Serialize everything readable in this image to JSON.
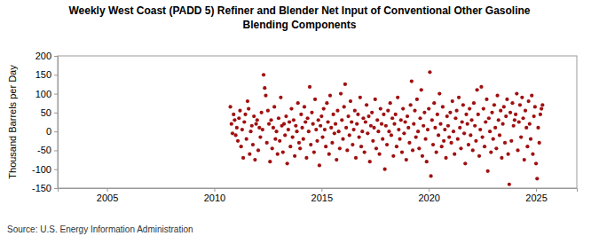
{
  "chart_data": {
    "type": "scatter",
    "title": [
      "Weekly West Coast (PADD 5) Refiner and Blender Net Input of Conventional Other Gasoline",
      "Blending Components"
    ],
    "y_label": "Thousand Barrels per Day",
    "source": "Source: U.S. Energy Information Administration",
    "color": "#a01010",
    "marker": "circle",
    "grid": false,
    "xlim": [
      2002.7,
      2026.9
    ],
    "xticks": [
      2005,
      2010,
      2015,
      2020,
      2025
    ],
    "ylim": [
      -150,
      200
    ],
    "yticks": [
      -150,
      -100,
      -50,
      0,
      50,
      100,
      150,
      200
    ],
    "x": [
      2010.75,
      2010.8,
      2010.85,
      2010.9,
      2010.95,
      2011.0,
      2011.05,
      2011.1,
      2011.15,
      2011.2,
      2011.25,
      2011.3,
      2011.35,
      2011.4,
      2011.45,
      2011.5,
      2011.55,
      2011.6,
      2011.65,
      2011.7,
      2011.75,
      2011.8,
      2011.85,
      2011.9,
      2011.95,
      2012.0,
      2012.05,
      2012.1,
      2012.15,
      2012.2,
      2012.25,
      2012.3,
      2012.35,
      2012.4,
      2012.45,
      2012.5,
      2012.55,
      2012.6,
      2012.65,
      2012.7,
      2012.75,
      2012.8,
      2012.85,
      2012.9,
      2012.95,
      2013.0,
      2013.05,
      2013.1,
      2013.15,
      2013.2,
      2013.25,
      2013.3,
      2013.35,
      2013.4,
      2013.45,
      2013.5,
      2013.55,
      2013.6,
      2013.65,
      2013.7,
      2013.75,
      2013.8,
      2013.85,
      2013.9,
      2013.95,
      2014.0,
      2014.05,
      2014.1,
      2014.15,
      2014.2,
      2014.25,
      2014.3,
      2014.35,
      2014.4,
      2014.45,
      2014.5,
      2014.55,
      2014.6,
      2014.65,
      2014.7,
      2014.75,
      2014.8,
      2014.85,
      2014.9,
      2014.95,
      2015.0,
      2015.05,
      2015.1,
      2015.15,
      2015.2,
      2015.25,
      2015.3,
      2015.35,
      2015.4,
      2015.45,
      2015.5,
      2015.55,
      2015.6,
      2015.65,
      2015.7,
      2015.75,
      2015.8,
      2015.85,
      2015.9,
      2015.95,
      2016.0,
      2016.05,
      2016.1,
      2016.15,
      2016.2,
      2016.25,
      2016.3,
      2016.35,
      2016.4,
      2016.45,
      2016.5,
      2016.55,
      2016.6,
      2016.65,
      2016.7,
      2016.75,
      2016.8,
      2016.85,
      2016.9,
      2016.95,
      2017.0,
      2017.05,
      2017.1,
      2017.15,
      2017.2,
      2017.25,
      2017.3,
      2017.35,
      2017.4,
      2017.45,
      2017.5,
      2017.55,
      2017.6,
      2017.65,
      2017.7,
      2017.75,
      2017.8,
      2017.85,
      2017.9,
      2017.95,
      2018.0,
      2018.05,
      2018.1,
      2018.15,
      2018.2,
      2018.25,
      2018.3,
      2018.35,
      2018.4,
      2018.45,
      2018.5,
      2018.55,
      2018.6,
      2018.65,
      2018.7,
      2018.75,
      2018.8,
      2018.85,
      2018.9,
      2018.95,
      2019.0,
      2019.05,
      2019.1,
      2019.15,
      2019.2,
      2019.25,
      2019.3,
      2019.35,
      2019.4,
      2019.45,
      2019.5,
      2019.55,
      2019.6,
      2019.65,
      2019.7,
      2019.75,
      2019.8,
      2019.85,
      2019.9,
      2019.95,
      2020.0,
      2020.05,
      2020.1,
      2020.15,
      2020.2,
      2020.25,
      2020.3,
      2020.35,
      2020.4,
      2020.45,
      2020.5,
      2020.55,
      2020.6,
      2020.65,
      2020.7,
      2020.75,
      2020.8,
      2020.85,
      2020.9,
      2020.95,
      2021.0,
      2021.05,
      2021.1,
      2021.15,
      2021.2,
      2021.25,
      2021.3,
      2021.35,
      2021.4,
      2021.45,
      2021.5,
      2021.55,
      2021.6,
      2021.65,
      2021.7,
      2021.75,
      2021.8,
      2021.85,
      2021.9,
      2021.95,
      2022.0,
      2022.05,
      2022.1,
      2022.15,
      2022.2,
      2022.25,
      2022.3,
      2022.35,
      2022.4,
      2022.45,
      2022.5,
      2022.55,
      2022.6,
      2022.65,
      2022.7,
      2022.75,
      2022.8,
      2022.85,
      2022.9,
      2022.95,
      2023.0,
      2023.05,
      2023.1,
      2023.15,
      2023.2,
      2023.25,
      2023.3,
      2023.35,
      2023.4,
      2023.45,
      2023.5,
      2023.55,
      2023.6,
      2023.65,
      2023.7,
      2023.75,
      2023.8,
      2023.85,
      2023.9,
      2023.95,
      2024.0,
      2024.05,
      2024.1,
      2024.15,
      2024.2,
      2024.25,
      2024.3,
      2024.35,
      2024.4,
      2024.45,
      2024.5,
      2024.55,
      2024.6,
      2024.65,
      2024.7,
      2024.75,
      2024.8,
      2024.85,
      2024.9,
      2024.95,
      2025.0,
      2025.05,
      2025.1,
      2025.15,
      2025.2,
      2025.25,
      2025.3
    ],
    "values": [
      65,
      20,
      -5,
      45,
      30,
      -10,
      10,
      -25,
      35,
      55,
      -40,
      5,
      -70,
      25,
      45,
      -20,
      80,
      60,
      -60,
      0,
      15,
      -35,
      40,
      -75,
      20,
      30,
      -50,
      10,
      -15,
      50,
      5,
      150,
      115,
      95,
      -30,
      55,
      20,
      -80,
      30,
      -45,
      10,
      65,
      -20,
      0,
      -60,
      35,
      -25,
      90,
      15,
      -55,
      20,
      -10,
      40,
      -85,
      5,
      25,
      -40,
      60,
      -15,
      30,
      -65,
      15,
      0,
      75,
      -30,
      -45,
      45,
      10,
      -20,
      65,
      25,
      -70,
      35,
      0,
      118,
      -35,
      50,
      20,
      -55,
      85,
      5,
      -25,
      30,
      -90,
      15,
      40,
      -15,
      60,
      5,
      -40,
      75,
      25,
      -60,
      95,
      10,
      -30,
      45,
      -5,
      20,
      -75,
      55,
      0,
      -45,
      100,
      30,
      -20,
      65,
      125,
      10,
      -50,
      40,
      -10,
      80,
      25,
      -35,
      5,
      55,
      -70,
      20,
      45,
      -15,
      90,
      -40,
      0,
      35,
      -55,
      25,
      70,
      -5,
      40,
      -80,
      15,
      50,
      -25,
      10,
      85,
      -45,
      30,
      0,
      -60,
      60,
      20,
      -20,
      45,
      -100,
      15,
      -35,
      55,
      0,
      75,
      -10,
      35,
      -65,
      20,
      45,
      -40,
      90,
      5,
      -20,
      30,
      -55,
      60,
      -5,
      25,
      -75,
      40,
      10,
      -30,
      70,
      133,
      -50,
      20,
      55,
      -15,
      85,
      0,
      -45,
      35,
      110,
      -65,
      15,
      50,
      -20,
      -80,
      5,
      60,
      157,
      -118,
      30,
      -35,
      75,
      10,
      -55,
      45,
      -10,
      100,
      20,
      -40,
      65,
      -25,
      5,
      -70,
      40,
      15,
      -15,
      50,
      -30,
      80,
      0,
      -60,
      35,
      55,
      -20,
      90,
      10,
      -45,
      25,
      70,
      -5,
      -85,
      45,
      20,
      -35,
      60,
      -10,
      30,
      -50,
      75,
      15,
      -25,
      110,
      45,
      -65,
      5,
      118,
      -15,
      60,
      -40,
      25,
      85,
      -105,
      35,
      0,
      -55,
      50,
      -20,
      70,
      10,
      -45,
      95,
      30,
      -10,
      55,
      -70,
      20,
      65,
      -30,
      40,
      85,
      -60,
      -140,
      50,
      -25,
      75,
      15,
      30,
      45,
      100,
      -50,
      25,
      70,
      -15,
      90,
      35,
      -75,
      55,
      10,
      -40,
      80,
      20,
      -20,
      95,
      -60,
      40,
      65,
      -85,
      -125,
      10,
      -30,
      45,
      60,
      70
    ]
  }
}
